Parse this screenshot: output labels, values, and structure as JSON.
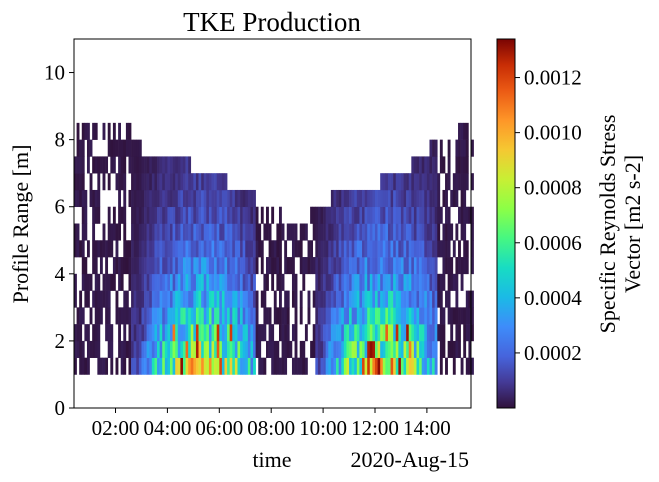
{
  "chart_data": {
    "type": "heatmap",
    "title": "TKE Production",
    "xlabel": "time",
    "x_offset_label": "2020-Aug-15",
    "ylabel": "Profile Range [m]",
    "x_ticks": [
      "02:00",
      "04:00",
      "06:00",
      "08:00",
      "10:00",
      "12:00",
      "14:00"
    ],
    "x_tick_hours": [
      2,
      4,
      6,
      8,
      10,
      12,
      14
    ],
    "xlim_hours": [
      0.4,
      15.7
    ],
    "ylim": [
      0,
      11
    ],
    "y_ticks": [
      0,
      2,
      4,
      6,
      8,
      10
    ],
    "colorbar": {
      "label_lines": [
        "Specific Reynolds Stress",
        "Vector [m2 s-2]"
      ],
      "ticks": [
        "0.0002",
        "0.0004",
        "0.0006",
        "0.0008",
        "0.0010",
        "0.0012"
      ],
      "tick_values": [
        0.0002,
        0.0004,
        0.0006,
        0.0008,
        0.001,
        0.0012
      ],
      "range": [
        0.0,
        0.00134
      ],
      "colormap": "turbo"
    },
    "range_bins": {
      "start": 1.0,
      "step": 0.5,
      "count": 15
    },
    "estimated_field": {
      "note_period_1_peak_hours": 5.3,
      "note_period_2_peak_hours": 12.3
    },
    "data_profile": {
      "max_height_by_hour": [
        [
          0.4,
          8.5
        ],
        [
          2.5,
          8.5
        ],
        [
          2.6,
          8.0
        ],
        [
          3.0,
          7.5
        ],
        [
          4.7,
          7.5
        ],
        [
          4.8,
          7.0
        ],
        [
          6.1,
          7.0
        ],
        [
          6.2,
          6.5
        ],
        [
          7.4,
          6.5
        ],
        [
          7.5,
          6.0
        ],
        [
          8.2,
          6.0
        ],
        [
          8.3,
          5.5
        ],
        [
          9.3,
          5.5
        ],
        [
          9.4,
          6.0
        ],
        [
          10.1,
          6.0
        ],
        [
          10.2,
          6.5
        ],
        [
          12.0,
          6.5
        ],
        [
          12.1,
          7.0
        ],
        [
          13.2,
          7.0
        ],
        [
          13.3,
          7.5
        ],
        [
          13.9,
          7.5
        ],
        [
          14.0,
          8.0
        ],
        [
          15.0,
          8.0
        ],
        [
          15.1,
          8.5
        ],
        [
          15.7,
          8.5
        ]
      ],
      "active_periods_hours": [
        [
          2.6,
          7.3
        ],
        [
          9.6,
          14.3
        ]
      ],
      "peak_value": 0.00134,
      "peak_height": 1.5
    }
  }
}
